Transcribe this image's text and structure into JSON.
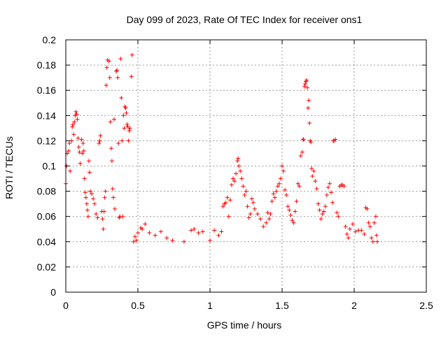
{
  "chart_data": {
    "type": "scatter",
    "title": "Day 099 of 2023, Rate Of TEC Index for receiver ons1",
    "xlabel": "GPS time / hours",
    "ylabel": "ROTI / TECUs",
    "xlim": [
      0,
      2.5
    ],
    "ylim": [
      0,
      0.2
    ],
    "x_ticks": [
      {
        "value": 0,
        "label": "0"
      },
      {
        "value": 0.5,
        "label": "0.5"
      },
      {
        "value": 1,
        "label": "1"
      },
      {
        "value": 1.5,
        "label": "1.5"
      },
      {
        "value": 2,
        "label": "2"
      },
      {
        "value": 2.5,
        "label": "2.5"
      }
    ],
    "y_ticks": [
      {
        "value": 0,
        "label": "0"
      },
      {
        "value": 0.02,
        "label": "0.02"
      },
      {
        "value": 0.04,
        "label": "0.04"
      },
      {
        "value": 0.06,
        "label": "0.06"
      },
      {
        "value": 0.08,
        "label": "0.08"
      },
      {
        "value": 0.1,
        "label": "0.1"
      },
      {
        "value": 0.12,
        "label": "0.12"
      },
      {
        "value": 0.14,
        "label": "0.14"
      },
      {
        "value": 0.16,
        "label": "0.16"
      },
      {
        "value": 0.18,
        "label": "0.18"
      },
      {
        "value": 0.2,
        "label": "0.2"
      }
    ],
    "grid": true,
    "marker": "+",
    "marker_color": "#ff0000",
    "series": [
      {
        "points": [
          [
            0.0,
            0.086
          ],
          [
            0.005,
            0.1
          ],
          [
            0.01,
            0.11
          ],
          [
            0.02,
            0.112
          ],
          [
            0.025,
            0.118
          ],
          [
            0.03,
            0.096
          ],
          [
            0.04,
            0.12
          ],
          [
            0.045,
            0.131
          ],
          [
            0.05,
            0.133
          ],
          [
            0.055,
            0.125
          ],
          [
            0.06,
            0.135
          ],
          [
            0.065,
            0.14
          ],
          [
            0.07,
            0.143
          ],
          [
            0.075,
            0.141
          ],
          [
            0.08,
            0.137
          ],
          [
            0.085,
            0.122
          ],
          [
            0.09,
            0.115
          ],
          [
            0.095,
            0.111
          ],
          [
            0.1,
            0.102
          ],
          [
            0.11,
            0.121
          ],
          [
            0.115,
            0.11
          ],
          [
            0.12,
            0.118
          ],
          [
            0.125,
            0.112
          ],
          [
            0.13,
            0.09
          ],
          [
            0.135,
            0.079
          ],
          [
            0.14,
            0.075
          ],
          [
            0.145,
            0.07
          ],
          [
            0.15,
            0.065
          ],
          [
            0.155,
            0.06
          ],
          [
            0.16,
            0.104
          ],
          [
            0.165,
            0.095
          ],
          [
            0.17,
            0.08
          ],
          [
            0.18,
            0.078
          ],
          [
            0.19,
            0.074
          ],
          [
            0.2,
            0.07
          ],
          [
            0.21,
            0.062
          ],
          [
            0.22,
            0.059
          ],
          [
            0.23,
            0.118
          ],
          [
            0.235,
            0.12
          ],
          [
            0.24,
            0.124
          ],
          [
            0.25,
            0.064
          ],
          [
            0.255,
            0.058
          ],
          [
            0.26,
            0.05
          ],
          [
            0.265,
            0.064
          ],
          [
            0.27,
            0.075
          ],
          [
            0.275,
            0.08
          ],
          [
            0.28,
            0.164
          ],
          [
            0.285,
            0.178
          ],
          [
            0.29,
            0.184
          ],
          [
            0.3,
            0.183
          ],
          [
            0.305,
            0.17
          ],
          [
            0.31,
            0.135
          ],
          [
            0.315,
            0.114
          ],
          [
            0.32,
            0.104
          ],
          [
            0.325,
            0.082
          ],
          [
            0.33,
            0.075
          ],
          [
            0.335,
            0.137
          ],
          [
            0.34,
            0.066
          ],
          [
            0.35,
            0.175
          ],
          [
            0.355,
            0.176
          ],
          [
            0.36,
            0.17
          ],
          [
            0.365,
            0.118
          ],
          [
            0.37,
            0.059
          ],
          [
            0.375,
            0.06
          ],
          [
            0.38,
            0.185
          ],
          [
            0.385,
            0.154
          ],
          [
            0.39,
            0.12
          ],
          [
            0.395,
            0.06
          ],
          [
            0.4,
            0.14
          ],
          [
            0.405,
            0.13
          ],
          [
            0.41,
            0.147
          ],
          [
            0.415,
            0.146
          ],
          [
            0.42,
            0.142
          ],
          [
            0.425,
            0.133
          ],
          [
            0.43,
            0.131
          ],
          [
            0.435,
            0.12
          ],
          [
            0.44,
            0.128
          ],
          [
            0.445,
            0.13
          ],
          [
            0.455,
            0.171
          ],
          [
            0.46,
            0.188
          ],
          [
            0.47,
            0.04
          ],
          [
            0.48,
            0.044
          ],
          [
            0.49,
            0.041
          ],
          [
            0.5,
            0.047
          ],
          [
            0.52,
            0.051
          ],
          [
            0.53,
            0.05
          ],
          [
            0.55,
            0.054
          ],
          [
            0.58,
            0.047
          ],
          [
            0.62,
            0.045
          ],
          [
            0.66,
            0.048
          ],
          [
            0.7,
            0.043
          ],
          [
            0.74,
            0.041
          ],
          [
            0.82,
            0.04
          ],
          [
            0.87,
            0.049
          ],
          [
            0.89,
            0.05
          ],
          [
            0.92,
            0.047
          ],
          [
            0.95,
            0.048
          ],
          [
            1.0,
            0.041
          ],
          [
            1.03,
            0.049
          ],
          [
            1.06,
            0.045
          ],
          [
            1.08,
            0.048
          ],
          [
            1.09,
            0.068
          ],
          [
            1.1,
            0.07
          ],
          [
            1.11,
            0.071
          ],
          [
            1.12,
            0.075
          ],
          [
            1.13,
            0.06
          ],
          [
            1.14,
            0.073
          ],
          [
            1.15,
            0.085
          ],
          [
            1.16,
            0.09
          ],
          [
            1.17,
            0.088
          ],
          [
            1.18,
            0.094
          ],
          [
            1.19,
            0.104
          ],
          [
            1.195,
            0.106
          ],
          [
            1.2,
            0.1
          ],
          [
            1.21,
            0.096
          ],
          [
            1.22,
            0.09
          ],
          [
            1.23,
            0.084
          ],
          [
            1.24,
            0.077
          ],
          [
            1.25,
            0.08
          ],
          [
            1.26,
            0.068
          ],
          [
            1.27,
            0.059
          ],
          [
            1.28,
            0.062
          ],
          [
            1.29,
            0.074
          ],
          [
            1.3,
            0.071
          ],
          [
            1.31,
            0.066
          ],
          [
            1.33,
            0.062
          ],
          [
            1.35,
            0.058
          ],
          [
            1.37,
            0.052
          ],
          [
            1.39,
            0.055
          ],
          [
            1.4,
            0.063
          ],
          [
            1.41,
            0.058
          ],
          [
            1.42,
            0.062
          ],
          [
            1.43,
            0.072
          ],
          [
            1.44,
            0.078
          ],
          [
            1.45,
            0.075
          ],
          [
            1.46,
            0.08
          ],
          [
            1.47,
            0.084
          ],
          [
            1.48,
            0.086
          ],
          [
            1.49,
            0.09
          ],
          [
            1.5,
            0.1
          ],
          [
            1.51,
            0.096
          ],
          [
            1.52,
            0.081
          ],
          [
            1.53,
            0.077
          ],
          [
            1.54,
            0.068
          ],
          [
            1.55,
            0.065
          ],
          [
            1.56,
            0.061
          ],
          [
            1.57,
            0.057
          ],
          [
            1.58,
            0.055
          ],
          [
            1.59,
            0.064
          ],
          [
            1.6,
            0.072
          ],
          [
            1.61,
            0.086
          ],
          [
            1.62,
            0.084
          ],
          [
            1.63,
            0.108
          ],
          [
            1.64,
            0.111
          ],
          [
            1.645,
            0.121
          ],
          [
            1.65,
            0.121
          ],
          [
            1.655,
            0.163
          ],
          [
            1.66,
            0.165
          ],
          [
            1.665,
            0.167
          ],
          [
            1.67,
            0.168
          ],
          [
            1.675,
            0.162
          ],
          [
            1.68,
            0.146
          ],
          [
            1.685,
            0.152
          ],
          [
            1.69,
            0.134
          ],
          [
            1.695,
            0.12
          ],
          [
            1.7,
            0.119
          ],
          [
            1.705,
            0.098
          ],
          [
            1.71,
            0.092
          ],
          [
            1.72,
            0.096
          ],
          [
            1.73,
            0.088
          ],
          [
            1.74,
            0.082
          ],
          [
            1.75,
            0.07
          ],
          [
            1.76,
            0.065
          ],
          [
            1.77,
            0.058
          ],
          [
            1.78,
            0.062
          ],
          [
            1.79,
            0.064
          ],
          [
            1.8,
            0.068
          ],
          [
            1.81,
            0.077
          ],
          [
            1.82,
            0.083
          ],
          [
            1.83,
            0.086
          ],
          [
            1.84,
            0.079
          ],
          [
            1.85,
            0.071
          ],
          [
            1.855,
            0.12
          ],
          [
            1.86,
            0.12
          ],
          [
            1.87,
            0.121
          ],
          [
            1.88,
            0.063
          ],
          [
            1.89,
            0.06
          ],
          [
            1.9,
            0.084
          ],
          [
            1.91,
            0.085
          ],
          [
            1.92,
            0.085
          ],
          [
            1.93,
            0.084
          ],
          [
            1.94,
            0.052
          ],
          [
            1.95,
            0.046
          ],
          [
            1.96,
            0.043
          ],
          [
            1.97,
            0.05
          ],
          [
            1.99,
            0.054
          ],
          [
            2.01,
            0.048
          ],
          [
            2.03,
            0.049
          ],
          [
            2.05,
            0.049
          ],
          [
            2.07,
            0.046
          ],
          [
            2.08,
            0.067
          ],
          [
            2.09,
            0.066
          ],
          [
            2.1,
            0.055
          ],
          [
            2.11,
            0.052
          ],
          [
            2.12,
            0.043
          ],
          [
            2.13,
            0.04
          ],
          [
            2.14,
            0.055
          ],
          [
            2.15,
            0.06
          ],
          [
            2.155,
            0.045
          ],
          [
            2.16,
            0.04
          ]
        ]
      }
    ]
  }
}
